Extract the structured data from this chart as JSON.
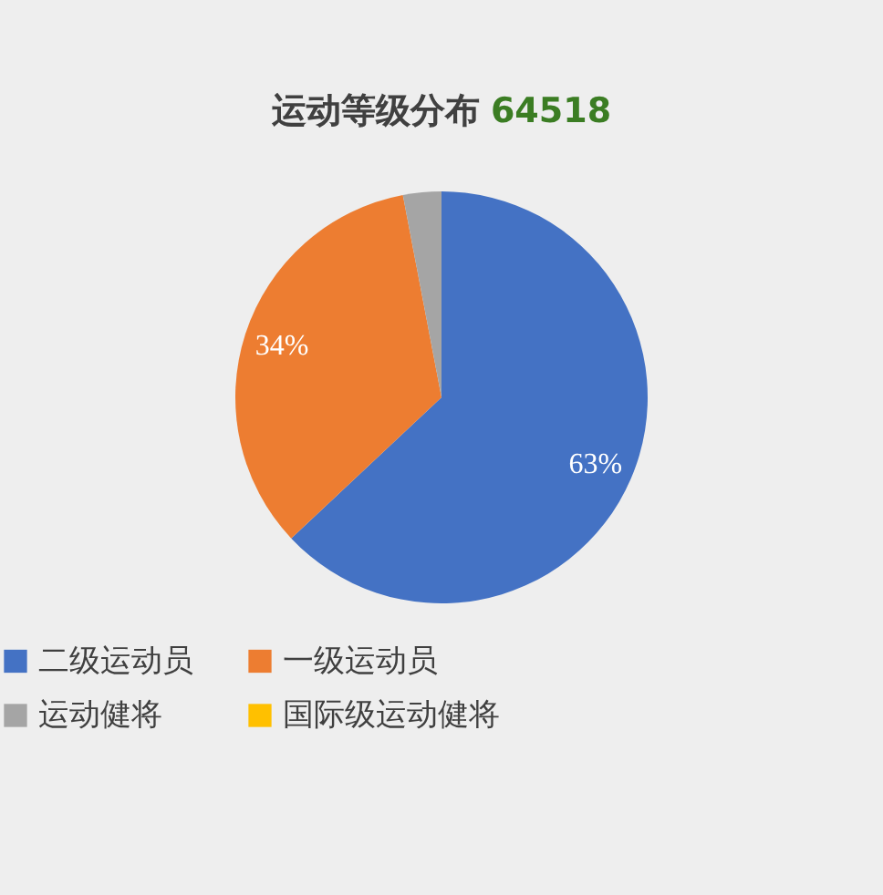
{
  "chart_data": {
    "type": "pie",
    "title": "运动等级分布",
    "subtitle": "64518",
    "categories": [
      "二级运动员",
      "一级运动员",
      "运动健将",
      "国际级运动健将"
    ],
    "values": [
      63,
      34,
      3,
      0
    ],
    "colors": [
      "#4472c4",
      "#ed7d31",
      "#a5a5a5",
      "#ffc000"
    ],
    "value_labels": [
      "63%",
      "34%",
      null,
      null
    ],
    "legend": "bottom"
  }
}
